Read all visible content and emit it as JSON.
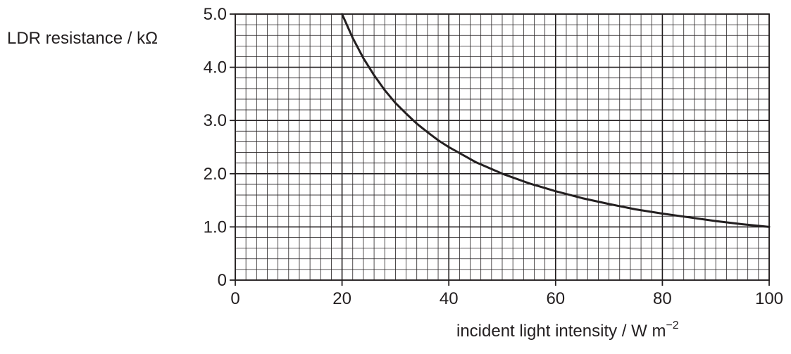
{
  "chart_data": {
    "type": "line",
    "title": "",
    "xlabel": "incident light intensity / W m",
    "xlabel_superscript": "−2",
    "ylabel": "LDR resistance / kΩ",
    "xlim": [
      0,
      100
    ],
    "ylim": [
      0,
      5.0
    ],
    "x_ticks": [
      "0",
      "20",
      "40",
      "60",
      "80",
      "100"
    ],
    "x_tick_values": [
      0,
      20,
      40,
      60,
      80,
      100
    ],
    "y_ticks": [
      "0",
      "1.0",
      "2.0",
      "3.0",
      "4.0",
      "5.0"
    ],
    "y_tick_values": [
      0,
      1,
      2,
      3,
      4,
      5
    ],
    "grid": true,
    "minor_grid_step_x": 2,
    "minor_grid_step_y": 0.2,
    "major_grid_step_x": 20,
    "major_grid_step_y": 1,
    "series": [
      {
        "x": [
          20,
          22,
          24,
          26,
          28,
          30,
          32,
          34,
          36,
          38,
          40,
          45,
          50,
          55,
          60,
          65,
          70,
          75,
          80,
          85,
          90,
          95,
          100
        ],
        "y": [
          5.0,
          4.55,
          4.17,
          3.85,
          3.57,
          3.33,
          3.13,
          2.94,
          2.78,
          2.63,
          2.5,
          2.22,
          2.0,
          1.82,
          1.67,
          1.54,
          1.43,
          1.33,
          1.25,
          1.18,
          1.11,
          1.05,
          1.0
        ],
        "color": "#231f20"
      }
    ]
  }
}
